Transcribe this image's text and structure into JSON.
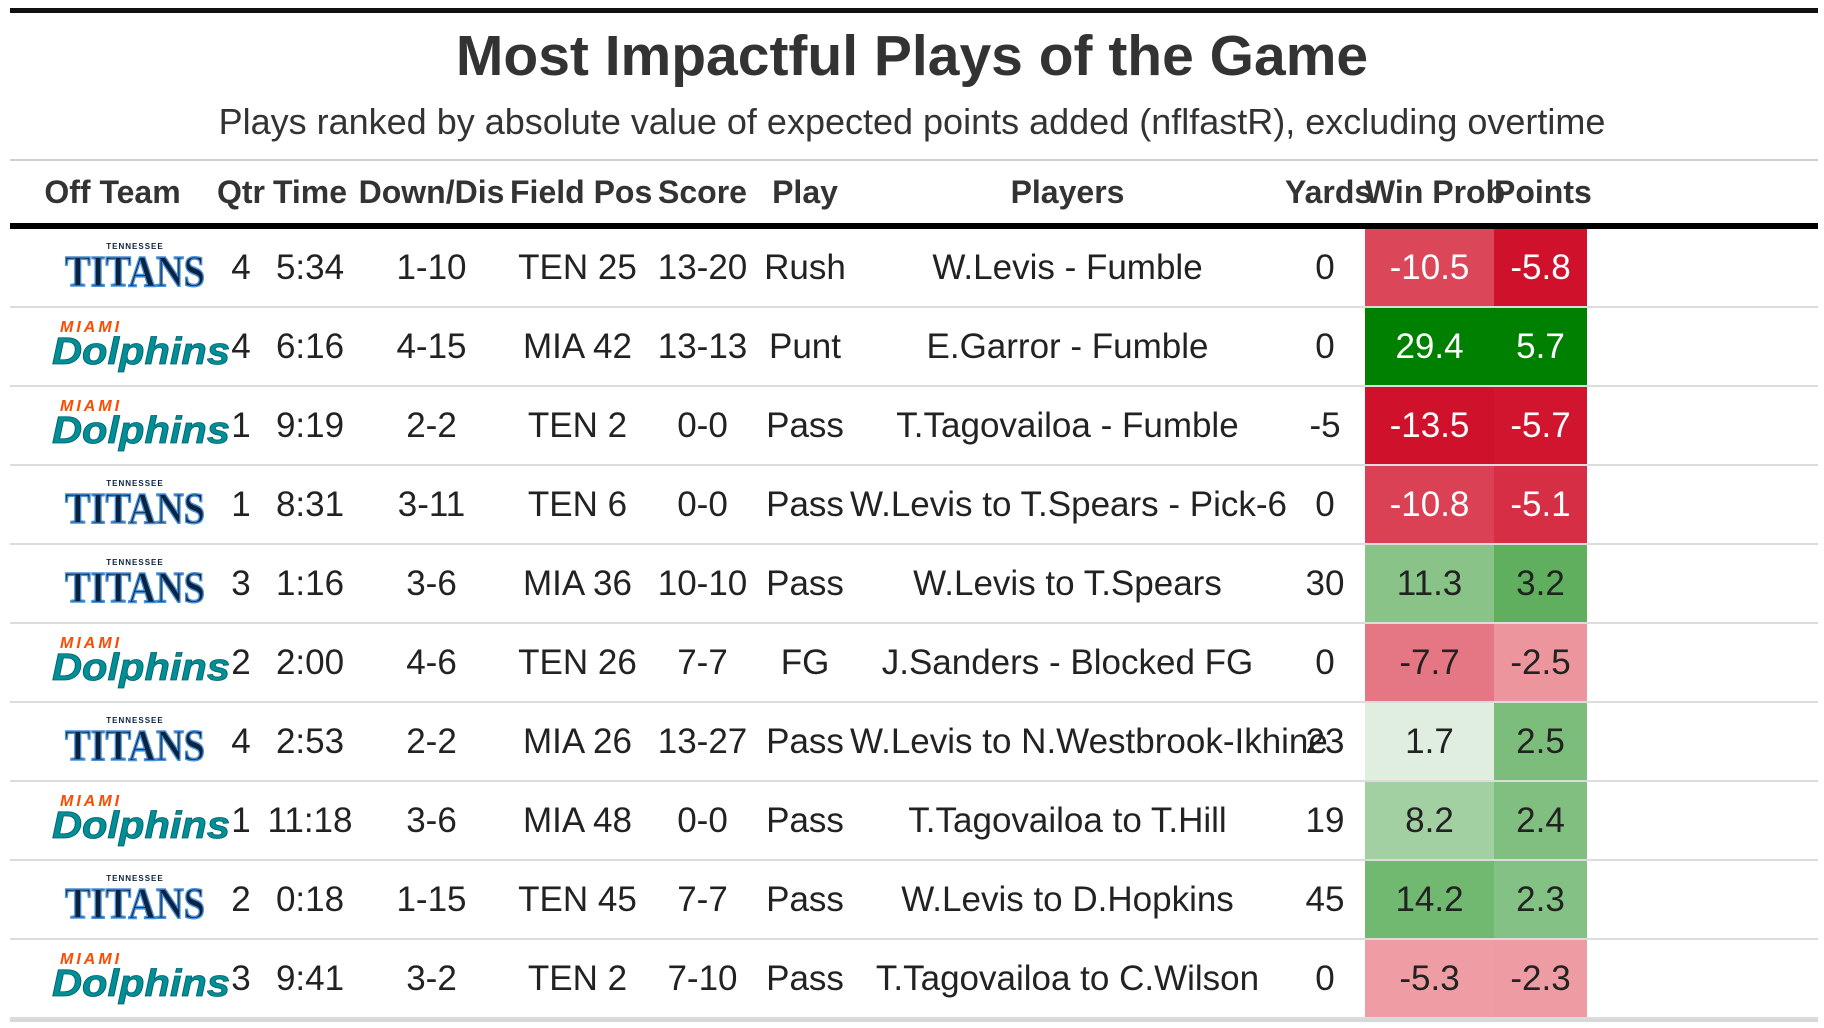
{
  "title": "Most Impactful Plays of the Game",
  "subtitle": "Plays ranked by absolute value of expected points added (nflfastR), excluding overtime",
  "columns": [
    "Off Team",
    "Qtr",
    "Time",
    "Down/Dis",
    "Field Pos",
    "Score",
    "Play",
    "Players",
    "Yards",
    "Win Prob",
    "Points"
  ],
  "logos": {
    "titans": {
      "top": "TENNESSEE",
      "main": "TITANS",
      "color": "#0c2340",
      "accent": "#4b92db"
    },
    "dolphins": {
      "top": "MIAMI",
      "main": "Dolphins",
      "color": "#008e97",
      "accent": "#fc4c02"
    }
  },
  "chart_data": {
    "type": "table",
    "title": "Most Impactful Plays of the Game",
    "subtitle": "Plays ranked by absolute value of expected points added (nflfastR), excluding overtime",
    "columns": [
      "Off Team",
      "Qtr",
      "Time",
      "Down/Dis",
      "Field Pos",
      "Score",
      "Play",
      "Players",
      "Yards",
      "Win Prob",
      "Points"
    ],
    "rows": [
      {
        "team": "titans",
        "qtr": "4",
        "time": "5:34",
        "down": "1-10",
        "field": "TEN 25",
        "score": "13-20",
        "play": "Rush",
        "players": "W.Levis - Fumble",
        "yards": "0",
        "wp": "-10.5",
        "pts": "-5.8"
      },
      {
        "team": "dolphins",
        "qtr": "4",
        "time": "6:16",
        "down": "4-15",
        "field": "MIA 42",
        "score": "13-13",
        "play": "Punt",
        "players": "E.Garror - Fumble",
        "yards": "0",
        "wp": "29.4",
        "pts": "5.7"
      },
      {
        "team": "dolphins",
        "qtr": "1",
        "time": "9:19",
        "down": "2-2",
        "field": "TEN 2",
        "score": "0-0",
        "play": "Pass",
        "players": "T.Tagovailoa - Fumble",
        "yards": "-5",
        "wp": "-13.5",
        "pts": "-5.7"
      },
      {
        "team": "titans",
        "qtr": "1",
        "time": "8:31",
        "down": "3-11",
        "field": "TEN 6",
        "score": "0-0",
        "play": "Pass",
        "players": "W.Levis to T.Spears - Pick-6",
        "yards": "0",
        "wp": "-10.8",
        "pts": "-5.1"
      },
      {
        "team": "titans",
        "qtr": "3",
        "time": "1:16",
        "down": "3-6",
        "field": "MIA 36",
        "score": "10-10",
        "play": "Pass",
        "players": "W.Levis to T.Spears",
        "yards": "30",
        "wp": "11.3",
        "pts": "3.2"
      },
      {
        "team": "dolphins",
        "qtr": "2",
        "time": "2:00",
        "down": "4-6",
        "field": "TEN 26",
        "score": "7-7",
        "play": "FG",
        "players": "J.Sanders - Blocked FG",
        "yards": "0",
        "wp": "-7.7",
        "pts": "-2.5"
      },
      {
        "team": "titans",
        "qtr": "4",
        "time": "2:53",
        "down": "2-2",
        "field": "MIA 26",
        "score": "13-27",
        "play": "Pass",
        "players": "W.Levis to N.Westbrook-Ikhine",
        "yards": "23",
        "wp": "1.7",
        "pts": "2.5"
      },
      {
        "team": "dolphins",
        "qtr": "1",
        "time": "11:18",
        "down": "3-6",
        "field": "MIA 48",
        "score": "0-0",
        "play": "Pass",
        "players": "T.Tagovailoa to T.Hill",
        "yards": "19",
        "wp": "8.2",
        "pts": "2.4"
      },
      {
        "team": "titans",
        "qtr": "2",
        "time": "0:18",
        "down": "1-15",
        "field": "TEN 45",
        "score": "7-7",
        "play": "Pass",
        "players": "W.Levis to D.Hopkins",
        "yards": "45",
        "wp": "14.2",
        "pts": "2.3"
      },
      {
        "team": "dolphins",
        "qtr": "3",
        "time": "9:41",
        "down": "3-2",
        "field": "TEN 2",
        "score": "7-10",
        "play": "Pass",
        "players": "T.Tagovailoa to C.Wilson",
        "yards": "0",
        "wp": "-5.3",
        "pts": "-2.3"
      }
    ]
  }
}
